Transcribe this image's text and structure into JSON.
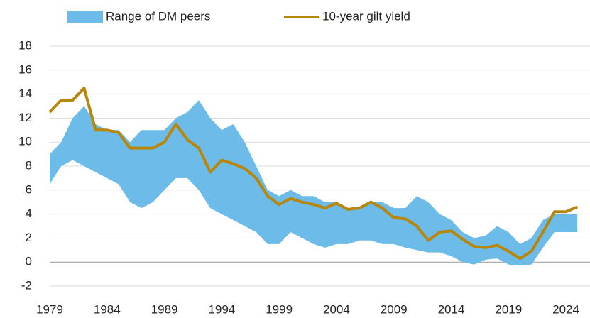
{
  "chart_data": {
    "type": "range-line",
    "x": [
      1979,
      1980,
      1981,
      1982,
      1983,
      1984,
      1985,
      1986,
      1987,
      1988,
      1989,
      1990,
      1991,
      1992,
      1993,
      1994,
      1995,
      1996,
      1997,
      1998,
      1999,
      2000,
      2001,
      2002,
      2003,
      2004,
      2005,
      2006,
      2007,
      2008,
      2009,
      2010,
      2011,
      2012,
      2013,
      2014,
      2015,
      2016,
      2017,
      2018,
      2019,
      2020,
      2021,
      2022,
      2023,
      2024,
      2025
    ],
    "series": [
      {
        "name": "Range of DM peers",
        "color": "#6cbbe8",
        "type": "range",
        "low": [
          6.5,
          8,
          8.5,
          8,
          7.5,
          7,
          6.5,
          5,
          4.5,
          5,
          6,
          7,
          7,
          6,
          4.5,
          4,
          3.5,
          3,
          2.5,
          1.5,
          1.5,
          2.5,
          2,
          1.5,
          1.2,
          1.5,
          1.5,
          1.8,
          1.8,
          1.5,
          1.5,
          1.2,
          1,
          0.8,
          0.8,
          0.5,
          0,
          -0.2,
          0.2,
          0.3,
          -0.2,
          -0.3,
          -0.2,
          1.2,
          2.5,
          2.5,
          2.5
        ],
        "high": [
          9,
          10,
          12,
          13,
          11.5,
          11,
          11,
          10,
          11,
          11,
          11,
          12,
          12.5,
          13.5,
          12,
          11,
          11.5,
          10,
          8,
          6,
          5.5,
          6,
          5.5,
          5.5,
          5,
          5,
          4.5,
          4.5,
          5,
          5,
          4.5,
          4.5,
          5.5,
          5,
          4,
          3.5,
          2.5,
          2,
          2.2,
          3,
          2.5,
          1.5,
          2,
          3.5,
          4,
          4,
          4
        ]
      },
      {
        "name": "10-year gilt yield",
        "color": "#b8860b",
        "type": "line",
        "values": [
          12.5,
          13.5,
          13.5,
          14.5,
          11,
          11,
          10.8,
          9.5,
          9.5,
          9.5,
          10,
          11.5,
          10.2,
          9.5,
          7.5,
          8.5,
          8.2,
          7.8,
          7,
          5.5,
          4.8,
          5.3,
          5,
          4.8,
          4.5,
          4.9,
          4.4,
          4.5,
          5,
          4.5,
          3.7,
          3.6,
          3,
          1.8,
          2.5,
          2.6,
          1.9,
          1.3,
          1.2,
          1.4,
          0.9,
          0.3,
          0.9,
          2.5,
          4.2,
          4.2,
          4.6
        ]
      }
    ],
    "xlim": [
      1979,
      2026.1
    ],
    "xticks": [
      1979,
      1984,
      1989,
      1994,
      1999,
      2004,
      2009,
      2014,
      2019,
      2024
    ],
    "ylim": [
      -2,
      18
    ],
    "yticks": [
      -2,
      0,
      2,
      4,
      6,
      8,
      10,
      12,
      14,
      16,
      18
    ],
    "grid": true
  }
}
